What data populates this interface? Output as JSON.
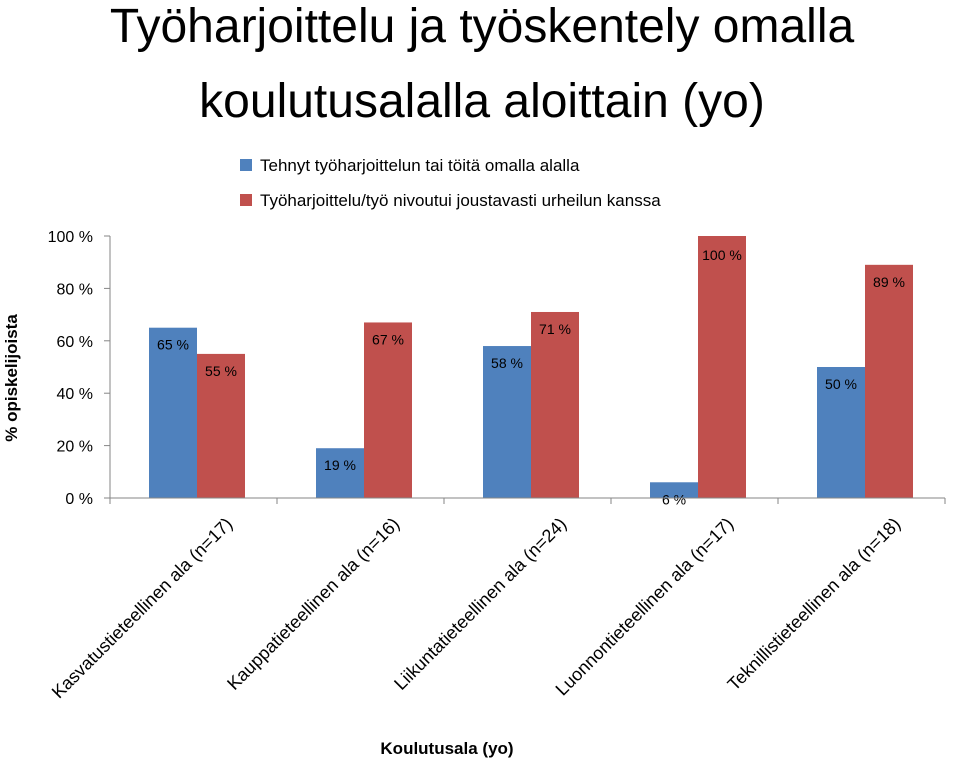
{
  "chart_data": {
    "type": "bar",
    "title_lines": [
      "Työharjoittelu ja työskentely omalla",
      "koulutusalalla aloittain (yo)"
    ],
    "xlabel": "Koulutusala (yo)",
    "ylabel": "% opiskelijoista",
    "ylim": [
      0,
      100
    ],
    "yticks": [
      "0 %",
      "20 %",
      "40 %",
      "60 %",
      "80 %",
      "100 %"
    ],
    "categories": [
      "Kasvatustieteellinen ala (n=17)",
      "Kauppatieteellinen ala (n=16)",
      "Liikuntatieteellinen ala (n=24)",
      "Luonnontieteellinen ala (n=17)",
      "Teknillistieteellinen ala (n=18)"
    ],
    "series": [
      {
        "name": "Tehnyt työharjoittelun tai töitä omalla alalla",
        "color": "#4F81BD",
        "values": [
          65,
          19,
          58,
          6,
          50
        ],
        "labels": [
          "65 %",
          "19 %",
          "58 %",
          "6 %",
          "50 %"
        ]
      },
      {
        "name": "Työharjoittelu/työ nivoutui joustavasti urheilun kanssa",
        "color": "#C0504D",
        "values": [
          55,
          67,
          71,
          100,
          89
        ],
        "labels": [
          "55 %",
          "67 %",
          "71 %",
          "100 %",
          "89 %"
        ]
      }
    ],
    "grid": false,
    "legend_position": "top"
  }
}
